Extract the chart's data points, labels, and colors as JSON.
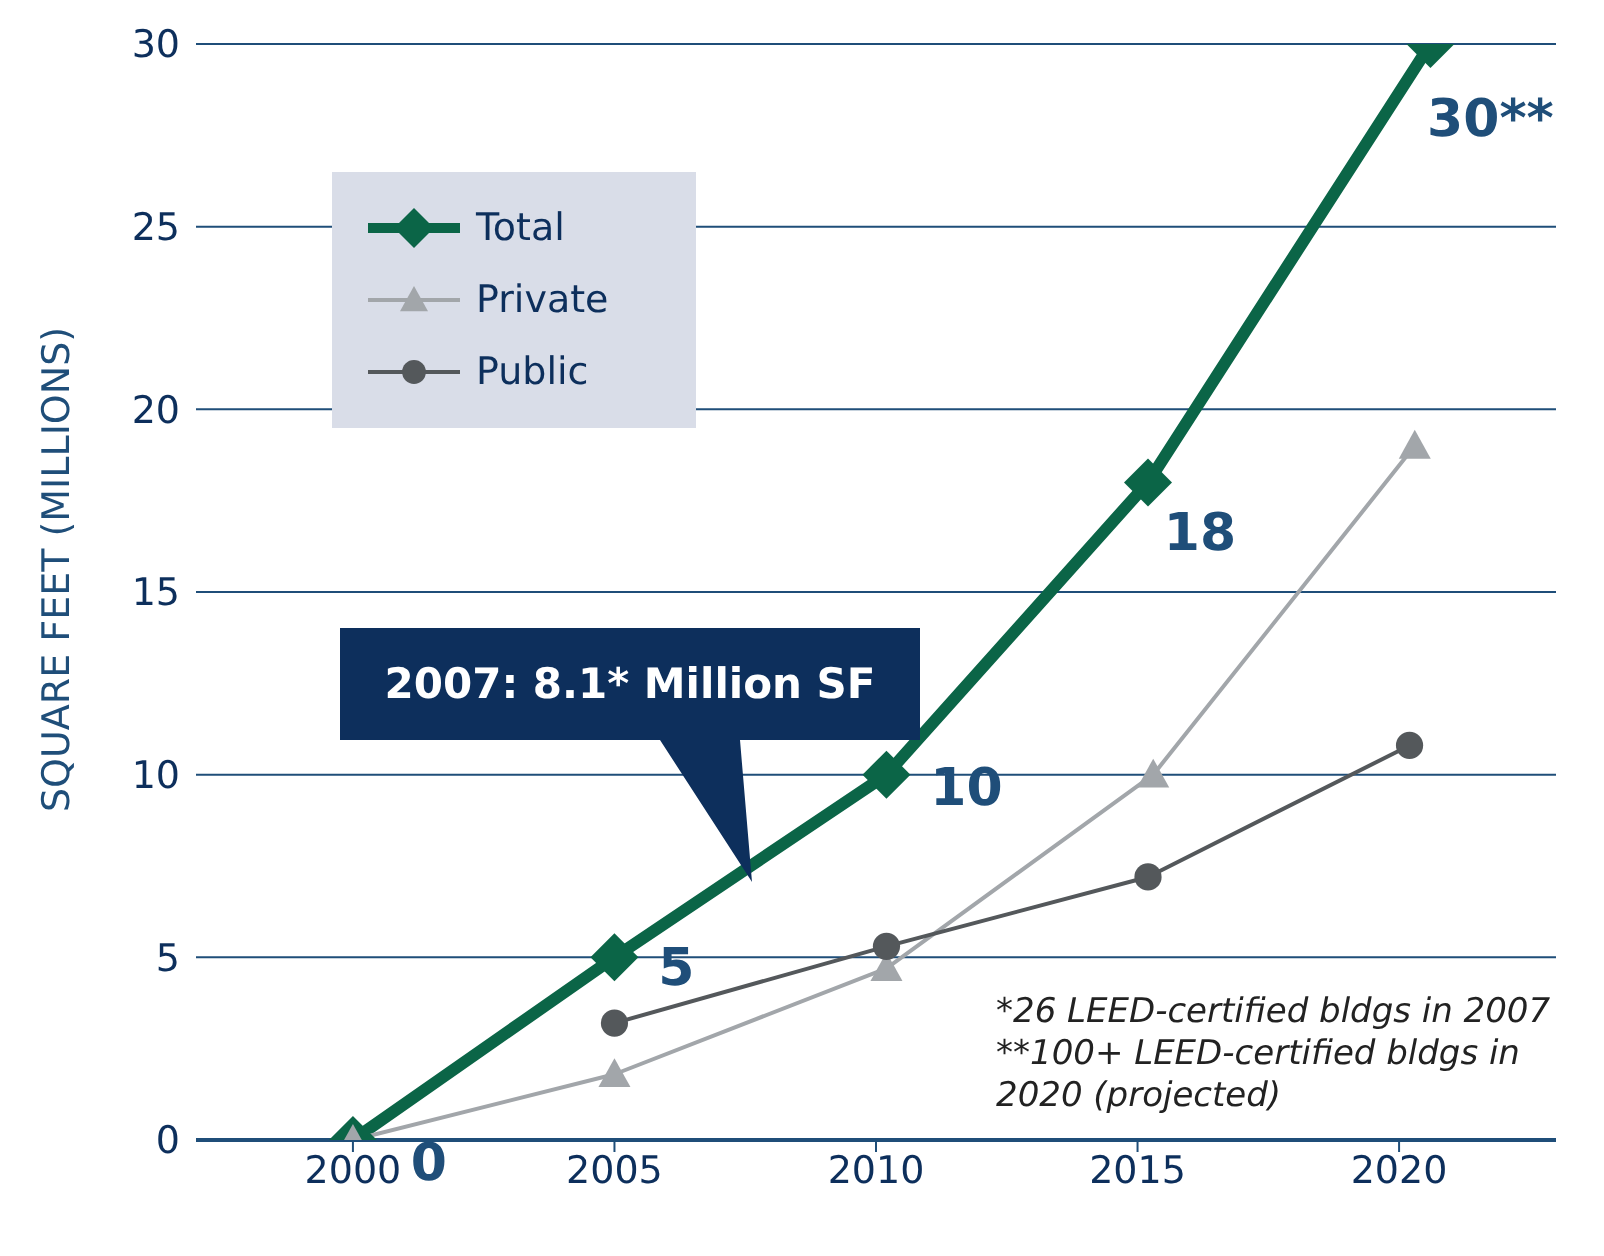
{
  "chart_data": {
    "type": "line",
    "ylabel": "SQUARE FEET (MILLIONS)",
    "xlim": [
      1997,
      2023
    ],
    "xticks": [
      2000,
      2005,
      2010,
      2015,
      2020
    ],
    "ylim": [
      0,
      30
    ],
    "yticks": [
      0,
      5,
      10,
      15,
      20,
      25,
      30
    ],
    "grid": "y",
    "legend": "top left",
    "line_style": "solid",
    "series": [
      {
        "name": "Total",
        "color": "#0b6547",
        "marker": "diamond",
        "x": [
          2000,
          2005,
          2010.2,
          2015.2,
          2020.6
        ],
        "values": [
          0,
          5,
          10,
          18,
          30
        ],
        "value_labels": [
          "0",
          "5",
          "10",
          "18",
          "30**"
        ]
      },
      {
        "name": "Private",
        "color": "#a2a6aa",
        "marker": "triangle",
        "x": [
          2000,
          2005,
          2010.2,
          2015.3,
          2020.3
        ],
        "values": [
          0,
          1.8,
          4.7,
          10,
          19
        ]
      },
      {
        "name": "Public",
        "color": "#54585b",
        "marker": "circle",
        "x": [
          2005,
          2010.2,
          2015.2,
          2020.2
        ],
        "values": [
          3.2,
          5.3,
          7.2,
          10.8
        ]
      }
    ],
    "annotations": [
      "2007: 8.1* Million SF",
      "*26 LEED-certified bldgs in 2007",
      "**100+ LEED-certified bldgs in 2020 (projected)"
    ]
  }
}
